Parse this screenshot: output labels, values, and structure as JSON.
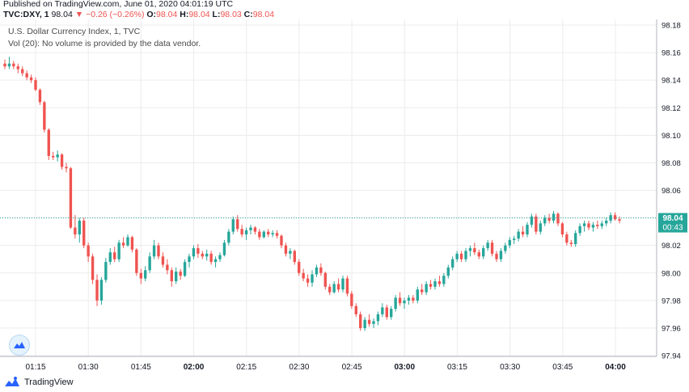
{
  "header": {
    "published": "Published on TradingView.com, June 01, 2020 04:01:19 UTC",
    "symbol": "TVC:DXY, 1",
    "last": "98.04",
    "arrow": "▼",
    "change": "−0.26 (−0.26%)",
    "o_label": "O:",
    "o_value": "98.04",
    "h_label": "H:",
    "h_value": "98.04",
    "l_label": "L:",
    "l_value": "98.03",
    "c_label": "C:",
    "c_value": "98.04"
  },
  "legend": {
    "title": "U.S. Dollar Currency Index, 1, TVC",
    "volume_note": "Vol (20): No volume is provided by the data vendor."
  },
  "price_tag": {
    "price": "98.04",
    "countdown": "00:43"
  },
  "footer": {
    "brand": "TradingView"
  },
  "colors": {
    "up": "#26a69a",
    "down": "#ef5350",
    "grid": "#ececec",
    "axis_text": "#131722",
    "last_line": "#26a69a",
    "brand_blue": "#2962ff"
  },
  "chart_data": {
    "type": "candlestick",
    "title": "U.S. Dollar Currency Index, 1, TVC",
    "y_ticks": [
      "98.18",
      "98.16",
      "98.14",
      "98.12",
      "98.10",
      "98.08",
      "98.06",
      "98.04",
      "98.02",
      "98.00",
      "97.98",
      "97.96",
      "97.94"
    ],
    "ylim": [
      97.94,
      98.18
    ],
    "x_ticks": [
      {
        "t": 15,
        "label": "01:15",
        "bold": false
      },
      {
        "t": 30,
        "label": "01:30",
        "bold": false
      },
      {
        "t": 45,
        "label": "01:45",
        "bold": false
      },
      {
        "t": 60,
        "label": "02:00",
        "bold": true
      },
      {
        "t": 75,
        "label": "02:15",
        "bold": false
      },
      {
        "t": 90,
        "label": "02:30",
        "bold": false
      },
      {
        "t": 105,
        "label": "02:45",
        "bold": false
      },
      {
        "t": 120,
        "label": "03:00",
        "bold": true
      },
      {
        "t": 135,
        "label": "03:15",
        "bold": false
      },
      {
        "t": 150,
        "label": "03:30",
        "bold": false
      },
      {
        "t": 165,
        "label": "03:45",
        "bold": false
      },
      {
        "t": 180,
        "label": "04:00",
        "bold": true
      }
    ],
    "grid": true,
    "last_price": 98.04,
    "candles_ohlc": [
      [
        98.152,
        98.155,
        98.148,
        98.15
      ],
      [
        98.15,
        98.157,
        98.148,
        98.152
      ],
      [
        98.152,
        98.154,
        98.148,
        98.15
      ],
      [
        98.15,
        98.152,
        98.145,
        98.148
      ],
      [
        98.148,
        98.15,
        98.143,
        98.145
      ],
      [
        98.145,
        98.147,
        98.14,
        98.142
      ],
      [
        98.142,
        98.144,
        98.138,
        98.14
      ],
      [
        98.14,
        98.142,
        98.132,
        98.133
      ],
      [
        98.133,
        98.134,
        98.122,
        98.124
      ],
      [
        98.124,
        98.125,
        98.102,
        98.104
      ],
      [
        98.104,
        98.105,
        98.082,
        98.085
      ],
      [
        98.085,
        98.088,
        98.082,
        98.084
      ],
      [
        98.084,
        98.089,
        98.081,
        98.086
      ],
      [
        98.086,
        98.087,
        98.075,
        98.077
      ],
      [
        98.077,
        98.08,
        98.073,
        98.076
      ],
      [
        98.076,
        98.077,
        98.032,
        98.033
      ],
      [
        98.033,
        98.042,
        98.025,
        98.028
      ],
      [
        98.028,
        98.04,
        98.022,
        98.038
      ],
      [
        98.038,
        98.04,
        98.018,
        98.02
      ],
      [
        98.02,
        98.022,
        98.008,
        98.012
      ],
      [
        98.012,
        98.014,
        97.992,
        97.995
      ],
      [
        97.995,
        97.999,
        97.976,
        97.98
      ],
      [
        97.98,
        97.997,
        97.977,
        97.995
      ],
      [
        97.995,
        98.011,
        97.993,
        98.008
      ],
      [
        98.008,
        98.018,
        98.006,
        98.015
      ],
      [
        98.015,
        98.019,
        98.008,
        98.01
      ],
      [
        98.01,
        98.024,
        98.008,
        98.022
      ],
      [
        98.022,
        98.026,
        98.018,
        98.02
      ],
      [
        98.02,
        98.028,
        98.019,
        98.026
      ],
      [
        98.026,
        98.027,
        98.015,
        98.017
      ],
      [
        98.017,
        98.018,
        97.998,
        98.0
      ],
      [
        98.0,
        98.003,
        97.992,
        97.996
      ],
      [
        97.996,
        98.005,
        97.994,
        98.002
      ],
      [
        98.002,
        98.015,
        98.0,
        98.012
      ],
      [
        98.012,
        98.024,
        98.01,
        98.02
      ],
      [
        98.02,
        98.022,
        98.01,
        98.012
      ],
      [
        98.012,
        98.015,
        98.004,
        98.006
      ],
      [
        98.006,
        98.01,
        97.999,
        98.002
      ],
      [
        98.002,
        98.004,
        97.99,
        97.994
      ],
      [
        97.994,
        98.004,
        97.992,
        98.001
      ],
      [
        98.001,
        98.003,
        97.995,
        97.998
      ],
      [
        97.998,
        98.01,
        97.997,
        98.008
      ],
      [
        98.008,
        98.014,
        98.004,
        98.012
      ],
      [
        98.012,
        98.02,
        98.01,
        98.018
      ],
      [
        98.018,
        98.021,
        98.011,
        98.014
      ],
      [
        98.014,
        98.016,
        98.01,
        98.012
      ],
      [
        98.012,
        98.017,
        98.009,
        98.014
      ],
      [
        98.014,
        98.016,
        98.006,
        98.008
      ],
      [
        98.008,
        98.012,
        98.004,
        98.01
      ],
      [
        98.01,
        98.015,
        98.008,
        98.013
      ],
      [
        98.013,
        98.024,
        98.012,
        98.022
      ],
      [
        98.022,
        98.032,
        98.02,
        98.03
      ],
      [
        98.03,
        98.041,
        98.028,
        98.039
      ],
      [
        98.039,
        98.042,
        98.03,
        98.032
      ],
      [
        98.032,
        98.035,
        98.026,
        98.028
      ],
      [
        98.028,
        98.033,
        98.024,
        98.031
      ],
      [
        98.031,
        98.035,
        98.028,
        98.033
      ],
      [
        98.033,
        98.034,
        98.028,
        98.03
      ],
      [
        98.03,
        98.032,
        98.024,
        98.026
      ],
      [
        98.026,
        98.031,
        98.025,
        98.03
      ],
      [
        98.03,
        98.032,
        98.026,
        98.028
      ],
      [
        98.028,
        98.031,
        98.026,
        98.029
      ],
      [
        98.029,
        98.031,
        98.025,
        98.027
      ],
      [
        98.027,
        98.028,
        98.018,
        98.02
      ],
      [
        98.02,
        98.022,
        98.012,
        98.014
      ],
      [
        98.014,
        98.018,
        98.01,
        98.016
      ],
      [
        98.016,
        98.017,
        98.006,
        98.008
      ],
      [
        98.008,
        98.01,
        97.998,
        98.0
      ],
      [
        98.0,
        98.003,
        97.994,
        97.996
      ],
      [
        97.996,
        97.999,
        97.99,
        97.993
      ],
      [
        97.993,
        98.002,
        97.99,
        97.999
      ],
      [
        97.999,
        98.006,
        97.997,
        98.004
      ],
      [
        98.004,
        98.007,
        97.998,
        98.0
      ],
      [
        98.0,
        98.001,
        97.988,
        97.99
      ],
      [
        97.99,
        97.992,
        97.984,
        97.986
      ],
      [
        97.986,
        97.994,
        97.985,
        97.992
      ],
      [
        97.992,
        97.996,
        97.986,
        97.988
      ],
      [
        97.988,
        97.998,
        97.986,
        97.996
      ],
      [
        97.996,
        97.998,
        97.983,
        97.985
      ],
      [
        97.985,
        97.987,
        97.974,
        97.976
      ],
      [
        97.976,
        97.978,
        97.968,
        97.97
      ],
      [
        97.97,
        97.972,
        97.958,
        97.96
      ],
      [
        97.96,
        97.968,
        97.958,
        97.966
      ],
      [
        97.966,
        97.97,
        97.961,
        97.963
      ],
      [
        97.963,
        97.967,
        97.96,
        97.965
      ],
      [
        97.965,
        97.972,
        97.962,
        97.97
      ],
      [
        97.97,
        97.978,
        97.968,
        97.975
      ],
      [
        97.975,
        97.977,
        97.966,
        97.968
      ],
      [
        97.968,
        97.976,
        97.966,
        97.974
      ],
      [
        97.974,
        97.984,
        97.972,
        97.982
      ],
      [
        97.982,
        97.986,
        97.976,
        97.978
      ],
      [
        97.978,
        97.982,
        97.974,
        97.98
      ],
      [
        97.98,
        97.984,
        97.977,
        97.982
      ],
      [
        97.982,
        97.984,
        97.978,
        97.98
      ],
      [
        97.98,
        97.99,
        97.978,
        97.988
      ],
      [
        97.988,
        97.992,
        97.984,
        97.986
      ],
      [
        97.986,
        97.994,
        97.984,
        97.992
      ],
      [
        97.992,
        97.995,
        97.988,
        97.99
      ],
      [
        97.99,
        97.996,
        97.988,
        97.994
      ],
      [
        97.994,
        97.998,
        97.99,
        97.992
      ],
      [
        97.992,
        98.0,
        97.99,
        97.998
      ],
      [
        97.998,
        98.006,
        97.996,
        98.004
      ],
      [
        98.004,
        98.012,
        98.002,
        98.01
      ],
      [
        98.01,
        98.016,
        98.008,
        98.014
      ],
      [
        98.014,
        98.016,
        98.008,
        98.01
      ],
      [
        98.01,
        98.018,
        98.008,
        98.016
      ],
      [
        98.016,
        98.02,
        98.012,
        98.018
      ],
      [
        98.018,
        98.022,
        98.013,
        98.015
      ],
      [
        98.015,
        98.017,
        98.01,
        98.012
      ],
      [
        98.012,
        98.02,
        98.01,
        98.018
      ],
      [
        98.018,
        98.024,
        98.016,
        98.022
      ],
      [
        98.022,
        98.024,
        98.012,
        98.014
      ],
      [
        98.014,
        98.016,
        98.008,
        98.01
      ],
      [
        98.01,
        98.018,
        98.008,
        98.016
      ],
      [
        98.016,
        98.022,
        98.014,
        98.02
      ],
      [
        98.02,
        98.026,
        98.018,
        98.024
      ],
      [
        98.024,
        98.027,
        98.021,
        98.025
      ],
      [
        98.025,
        98.032,
        98.023,
        98.03
      ],
      [
        98.03,
        98.034,
        98.026,
        98.028
      ],
      [
        98.028,
        98.037,
        98.026,
        98.035
      ],
      [
        98.035,
        98.043,
        98.033,
        98.041
      ],
      [
        98.041,
        98.043,
        98.028,
        98.03
      ],
      [
        98.03,
        98.038,
        98.028,
        98.036
      ],
      [
        98.036,
        98.042,
        98.034,
        98.04
      ],
      [
        98.04,
        98.043,
        98.036,
        98.038
      ],
      [
        98.038,
        98.045,
        98.036,
        98.043
      ],
      [
        98.043,
        98.044,
        98.034,
        98.036
      ],
      [
        98.036,
        98.037,
        98.026,
        98.028
      ],
      [
        98.028,
        98.03,
        98.02,
        98.022
      ],
      [
        98.022,
        98.024,
        98.019,
        98.021
      ],
      [
        98.021,
        98.031,
        98.019,
        98.029
      ],
      [
        98.029,
        98.036,
        98.027,
        98.034
      ],
      [
        98.034,
        98.038,
        98.03,
        98.036
      ],
      [
        98.036,
        98.038,
        98.031,
        98.033
      ],
      [
        98.033,
        98.037,
        98.03,
        98.035
      ],
      [
        98.035,
        98.038,
        98.032,
        98.034
      ],
      [
        98.034,
        98.038,
        98.032,
        98.036
      ],
      [
        98.036,
        98.04,
        98.034,
        98.038
      ],
      [
        98.038,
        98.044,
        98.036,
        98.042
      ],
      [
        98.042,
        98.044,
        98.038,
        98.039
      ],
      [
        98.039,
        98.041,
        98.036,
        98.038
      ]
    ]
  }
}
